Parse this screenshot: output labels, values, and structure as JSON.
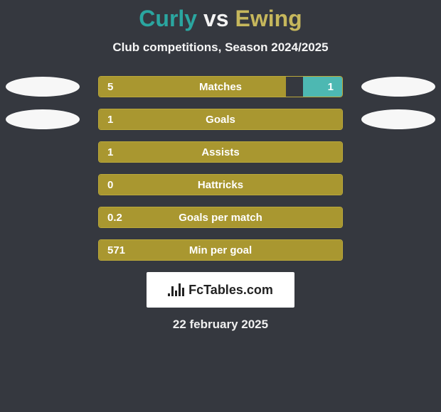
{
  "colors": {
    "bg": "#35383f",
    "teal": "#2aa6a0",
    "teal2": "#4db8b2",
    "olive": "#a99730",
    "olive_light": "#c6b75c",
    "olive_border": "#bba93a",
    "white2": "#f3f3f3"
  },
  "title": {
    "player1": "Curly",
    "vs": "vs",
    "player2": "Ewing"
  },
  "subtitle": "Club competitions, Season 2024/2025",
  "rows": [
    {
      "label": "Matches",
      "left_val": "5",
      "right_val": "1",
      "left_pct": 77,
      "right_pct": 16,
      "show_right": true,
      "show_left_ell": true,
      "show_right_ell": true
    },
    {
      "label": "Goals",
      "left_val": "1",
      "right_val": "",
      "left_pct": 100,
      "right_pct": 0,
      "show_right": false,
      "show_left_ell": true,
      "show_right_ell": true
    },
    {
      "label": "Assists",
      "left_val": "1",
      "right_val": "",
      "left_pct": 100,
      "right_pct": 0,
      "show_right": false,
      "show_left_ell": false,
      "show_right_ell": false
    },
    {
      "label": "Hattricks",
      "left_val": "0",
      "right_val": "",
      "left_pct": 100,
      "right_pct": 0,
      "show_right": false,
      "show_left_ell": false,
      "show_right_ell": false
    },
    {
      "label": "Goals per match",
      "left_val": "0.2",
      "right_val": "",
      "left_pct": 100,
      "right_pct": 0,
      "show_right": false,
      "show_left_ell": false,
      "show_right_ell": false
    },
    {
      "label": "Min per goal",
      "left_val": "571",
      "right_val": "",
      "left_pct": 100,
      "right_pct": 0,
      "show_right": false,
      "show_left_ell": false,
      "show_right_ell": false
    }
  ],
  "footer": {
    "brand": "FcTables.com",
    "date": "22 february 2025"
  },
  "logo_bars_heights": [
    4,
    14,
    8,
    18,
    12
  ]
}
